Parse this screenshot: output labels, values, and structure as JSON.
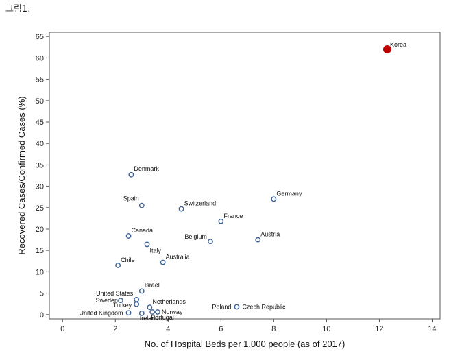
{
  "figure_caption": "그림1.",
  "chart_data": {
    "type": "scatter",
    "title": "",
    "xlabel": "No. of Hospital Beds per 1,000 people (as of 2017)",
    "ylabel": "Recovered Cases/Confirmed Cases (%)",
    "xlim": [
      -0.5,
      14.3
    ],
    "ylim": [
      -1,
      66
    ],
    "xticks": [
      0,
      2,
      4,
      6,
      8,
      10,
      12,
      14
    ],
    "yticks": [
      0,
      5,
      10,
      15,
      20,
      25,
      30,
      35,
      40,
      45,
      50,
      55,
      60,
      65
    ],
    "grid": false,
    "colors": {
      "default_marker": "#3a5f96",
      "highlight_marker": "#c00000"
    },
    "points": [
      {
        "label": "Korea",
        "x": 12.3,
        "y": 62,
        "highlight": true
      },
      {
        "label": "Denmark",
        "x": 2.6,
        "y": 32.7
      },
      {
        "label": "Germany",
        "x": 8.0,
        "y": 27
      },
      {
        "label": "Spain",
        "x": 3.0,
        "y": 25.5
      },
      {
        "label": "Switzerland",
        "x": 4.5,
        "y": 24.7
      },
      {
        "label": "France",
        "x": 6.0,
        "y": 21.8
      },
      {
        "label": "Canada",
        "x": 2.5,
        "y": 18.4
      },
      {
        "label": "Austria",
        "x": 7.4,
        "y": 17.5
      },
      {
        "label": "Belgium",
        "x": 5.6,
        "y": 17.1
      },
      {
        "label": "Italy",
        "x": 3.2,
        "y": 16.4
      },
      {
        "label": "Australia",
        "x": 3.8,
        "y": 12.2
      },
      {
        "label": "Chile",
        "x": 2.1,
        "y": 11.5
      },
      {
        "label": "Israel",
        "x": 3.0,
        "y": 5.5
      },
      {
        "label": "United States",
        "x": 2.8,
        "y": 3.5
      },
      {
        "label": "Sweden",
        "x": 2.2,
        "y": 3.3
      },
      {
        "label": "Turkey",
        "x": 2.8,
        "y": 2.4
      },
      {
        "label": "Netherlands",
        "x": 3.3,
        "y": 1.7
      },
      {
        "label": "Poland",
        "x": 6.6,
        "y": 1.8
      },
      {
        "label": "Czech Republic",
        "x": 6.6,
        "y": 1.8
      },
      {
        "label": "Norway",
        "x": 3.6,
        "y": 0.6
      },
      {
        "label": "United Kingdom",
        "x": 2.5,
        "y": 0.4
      },
      {
        "label": "Ireland",
        "x": 3.0,
        "y": 0.3
      },
      {
        "label": "Portugal",
        "x": 3.4,
        "y": 0.6
      }
    ]
  }
}
